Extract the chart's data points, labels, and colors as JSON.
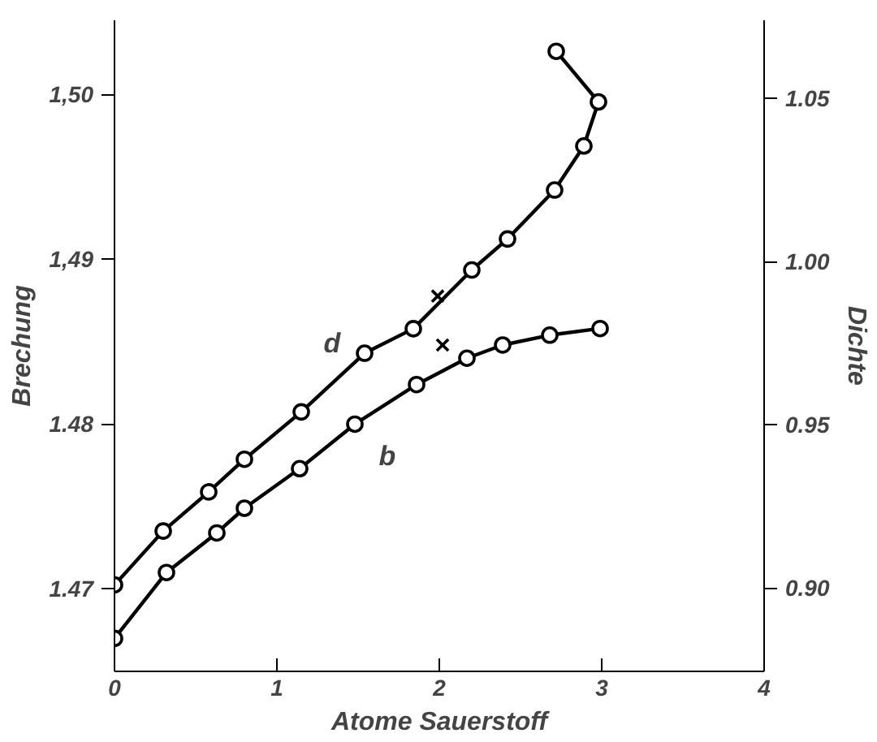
{
  "chart_data": {
    "type": "line",
    "xlabel": "Atome Sauerstoff",
    "ylabel": "Brechung",
    "y2label": "Dichte",
    "xlim": [
      0,
      4
    ],
    "xticks": [
      0,
      1,
      2,
      3,
      4
    ],
    "ylim": [
      1.465,
      1.5045
    ],
    "yticks": [
      {
        "value": 1.47,
        "label": "1.47"
      },
      {
        "value": 1.48,
        "label": "1.48"
      },
      {
        "value": 1.49,
        "label": "1,49"
      },
      {
        "value": 1.5,
        "label": "1,50"
      }
    ],
    "y2lim": [
      0.8745,
      1.074
    ],
    "y2ticks": [
      {
        "value": 0.9,
        "label": "0.90"
      },
      {
        "value": 0.95,
        "label": "0.95"
      },
      {
        "value": 1.0,
        "label": "1.00"
      },
      {
        "value": 1.05,
        "label": "1.05"
      }
    ],
    "marker": "circle",
    "grid": false,
    "series": [
      {
        "name": "d",
        "axis": "y2",
        "color": "#000000",
        "x": [
          0,
          0.3,
          0.58,
          0.8,
          1.15,
          1.54,
          1.84,
          2.2,
          2.42,
          2.71,
          2.89,
          2.98,
          2.72
        ],
        "values": [
          0.901,
          0.9175,
          0.9295,
          0.9395,
          0.954,
          0.972,
          0.9795,
          0.9975,
          1.007,
          1.022,
          1.0355,
          1.049,
          1.0645
        ]
      },
      {
        "type": "scatter",
        "axis": "y2",
        "marker": "cross",
        "color": "#000000",
        "x": [
          1.99
        ],
        "values": [
          0.9895
        ]
      },
      {
        "name": "b",
        "color": "#000000",
        "x": [
          0,
          0.32,
          0.63,
          0.8,
          1.14,
          1.48,
          1.86,
          2.17,
          2.39,
          2.68,
          2.99
        ],
        "values": [
          1.467,
          1.471,
          1.4734,
          1.4749,
          1.4773,
          1.48,
          1.4824,
          1.484,
          1.4848,
          1.4854,
          1.4858
        ]
      },
      {
        "type": "scatter",
        "marker": "cross",
        "color": "#000000",
        "x": [
          2.02
        ],
        "values": [
          1.4848
        ]
      }
    ]
  }
}
